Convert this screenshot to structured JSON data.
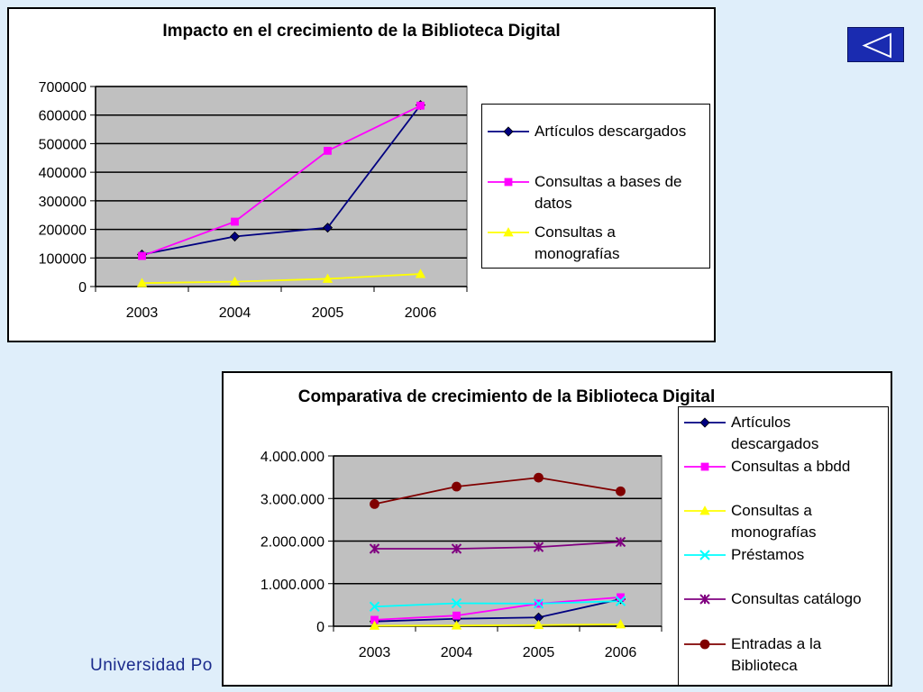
{
  "footer": {
    "text": "Universidad Po"
  },
  "nav": {
    "back_icon": "triangle-left-icon"
  },
  "chart_data": [
    {
      "type": "line",
      "title": "Impacto en el crecimiento de la Biblioteca Digital",
      "categories": [
        "2003",
        "2004",
        "2005",
        "2006"
      ],
      "ylim": [
        0,
        700000
      ],
      "y_ticks": [
        0,
        100000,
        200000,
        300000,
        400000,
        500000,
        600000,
        700000
      ],
      "y_tick_labels": [
        "0",
        "100000",
        "200000",
        "300000",
        "400000",
        "500000",
        "600000",
        "700000"
      ],
      "grid": true,
      "legend_position": "right",
      "series": [
        {
          "name": "Artículos descargados",
          "color": "#000080",
          "marker": "diamond",
          "values": [
            112000,
            175000,
            206000,
            635000
          ]
        },
        {
          "name": "Consultas a bases de datos",
          "color": "#ff00ff",
          "marker": "square",
          "values": [
            107000,
            227000,
            475000,
            633000
          ]
        },
        {
          "name": "Consultas a monografías",
          "color": "#ffff00",
          "marker": "triangle",
          "values": [
            12000,
            17000,
            27000,
            44000
          ]
        }
      ]
    },
    {
      "type": "line",
      "title": "Comparativa de crecimiento de la Biblioteca Digital",
      "categories": [
        "2003",
        "2004",
        "2005",
        "2006"
      ],
      "ylim": [
        0,
        4000000
      ],
      "y_ticks": [
        0,
        1000000,
        2000000,
        3000000,
        4000000
      ],
      "y_tick_labels": [
        "0",
        "1.000.000",
        "2.000.000",
        "3.000.000",
        "4.000.000"
      ],
      "grid": true,
      "legend_position": "right",
      "series": [
        {
          "name": "Artículos descargados",
          "color": "#000080",
          "marker": "diamond",
          "values": [
            112000,
            175000,
            206000,
            635000
          ]
        },
        {
          "name": "Consultas a bbdd",
          "color": "#ff00ff",
          "marker": "square",
          "values": [
            150000,
            250000,
            530000,
            680000
          ]
        },
        {
          "name": "Consultas a monografías",
          "color": "#ffff00",
          "marker": "triangle",
          "values": [
            12000,
            17000,
            27000,
            44000
          ]
        },
        {
          "name": "Préstamos",
          "color": "#00ffff",
          "marker": "x",
          "values": [
            460000,
            540000,
            530000,
            590000
          ]
        },
        {
          "name": "Consultas catálogo",
          "color": "#800080",
          "marker": "star",
          "values": [
            1820000,
            1820000,
            1860000,
            1980000
          ]
        },
        {
          "name": "Entradas a la Biblioteca",
          "color": "#800000",
          "marker": "circle",
          "values": [
            2870000,
            3280000,
            3490000,
            3170000
          ]
        }
      ]
    }
  ]
}
